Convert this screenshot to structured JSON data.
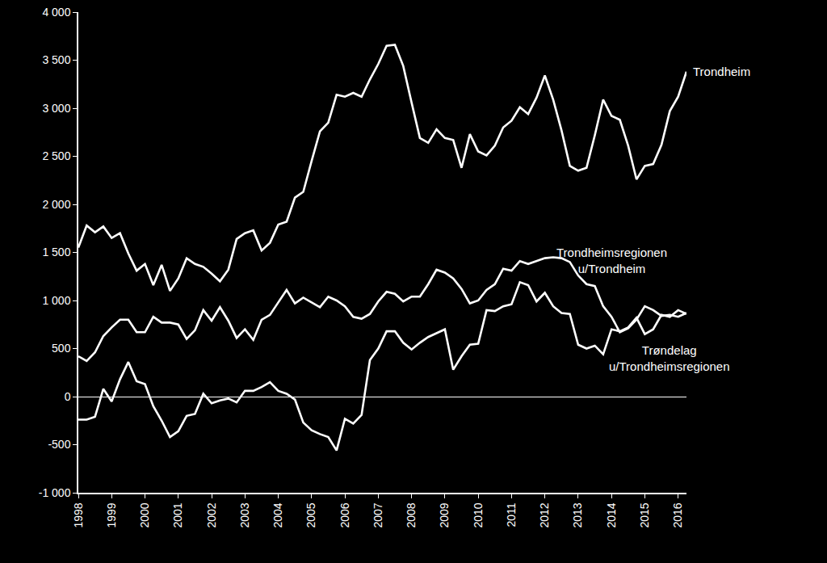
{
  "chart_data": {
    "type": "line",
    "categories": [
      "1998",
      null,
      null,
      null,
      "1999",
      null,
      null,
      null,
      "2000",
      null,
      null,
      null,
      "2001",
      null,
      null,
      null,
      "2002",
      null,
      null,
      null,
      "2003",
      null,
      null,
      null,
      "2004",
      null,
      null,
      null,
      "2005",
      null,
      null,
      null,
      "2006",
      null,
      null,
      null,
      "2007",
      null,
      null,
      null,
      "2008",
      null,
      null,
      null,
      "2009",
      null,
      null,
      null,
      "2010",
      null,
      null,
      null,
      "2011",
      null,
      null,
      null,
      "2012",
      null,
      null,
      null,
      "2013",
      null,
      null,
      null,
      "2014",
      null,
      null,
      null,
      "2015",
      null,
      null,
      null,
      "2016",
      null
    ],
    "series": [
      {
        "name": "Trondheim",
        "color": "#ffffff",
        "values": [
          1550,
          1780,
          1710,
          1770,
          1650,
          1700,
          1490,
          1310,
          1380,
          1160,
          1370,
          1100,
          1230,
          1440,
          1380,
          1350,
          1280,
          1200,
          1320,
          1640,
          1700,
          1730,
          1520,
          1600,
          1790,
          1820,
          2070,
          2130,
          2450,
          2760,
          2850,
          3140,
          3120,
          3160,
          3120,
          3300,
          3460,
          3650,
          3660,
          3440,
          3060,
          2690,
          2640,
          2780,
          2690,
          2670,
          2380,
          2730,
          2550,
          2510,
          2610,
          2800,
          2870,
          3010,
          2940,
          3110,
          3340,
          3090,
          2770,
          2400,
          2350,
          2380,
          2720,
          3090,
          2920,
          2880,
          2610,
          2260,
          2400,
          2420,
          2620,
          2970,
          3120,
          3380
        ]
      },
      {
        "name": "Trondheimsregionen u/Trondheim",
        "color": "#ffffff",
        "values": [
          420,
          370,
          460,
          630,
          720,
          800,
          800,
          670,
          670,
          830,
          770,
          770,
          750,
          600,
          690,
          900,
          790,
          930,
          790,
          610,
          700,
          590,
          800,
          850,
          980,
          1110,
          970,
          1030,
          980,
          930,
          1040,
          1000,
          940,
          830,
          810,
          860,
          990,
          1090,
          1070,
          990,
          1040,
          1040,
          1170,
          1320,
          1290,
          1230,
          1120,
          970,
          1000,
          1110,
          1170,
          1330,
          1310,
          1410,
          1380,
          1410,
          1440,
          1450,
          1440,
          1400,
          1260,
          1170,
          1150,
          940,
          830,
          670,
          710,
          800,
          940,
          900,
          840,
          850,
          830,
          870
        ]
      },
      {
        "name": "Trøndelag u/Trondheimsregionen",
        "color": "#ffffff",
        "values": [
          -240,
          -240,
          -210,
          80,
          -50,
          180,
          360,
          160,
          130,
          -100,
          -250,
          -420,
          -360,
          -200,
          -180,
          30,
          -70,
          -40,
          -20,
          -60,
          60,
          60,
          100,
          150,
          60,
          30,
          -30,
          -270,
          -350,
          -390,
          -420,
          -560,
          -230,
          -280,
          -190,
          380,
          500,
          680,
          680,
          560,
          490,
          560,
          620,
          660,
          700,
          280,
          420,
          540,
          550,
          900,
          890,
          940,
          960,
          1190,
          1160,
          990,
          1080,
          940,
          870,
          860,
          540,
          500,
          530,
          440,
          700,
          680,
          720,
          820,
          650,
          700,
          850,
          830,
          900,
          860
        ]
      }
    ],
    "ylim": [
      -1000,
      4000
    ],
    "yticks": [
      {
        "value": -1000,
        "label": "-1 000"
      },
      -500,
      0,
      500,
      {
        "value": 1000,
        "label": "1 000"
      },
      {
        "value": 1500,
        "label": "1 500"
      },
      {
        "value": 2000,
        "label": "2 000"
      },
      {
        "value": 2500,
        "label": "2 500"
      },
      {
        "value": 3000,
        "label": "3 000"
      },
      {
        "value": 3500,
        "label": "3 500"
      },
      {
        "value": 4000,
        "label": "4 000"
      }
    ],
    "grid": false,
    "legend": false
  }
}
